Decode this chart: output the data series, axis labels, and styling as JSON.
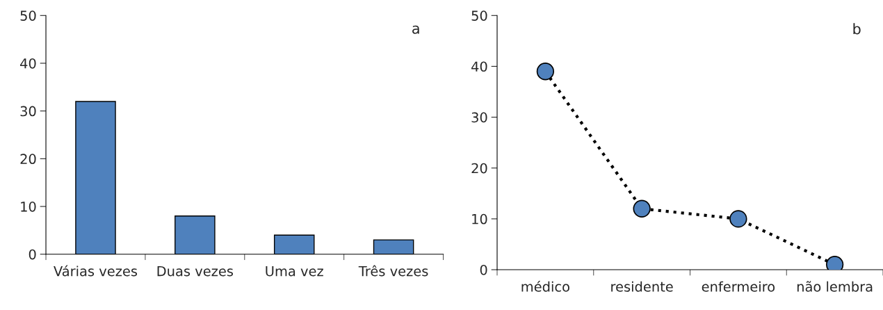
{
  "chart_data": [
    {
      "type": "bar",
      "categories": [
        "Várias vezes",
        "Duas vezes",
        "Uma vez",
        "Três vezes"
      ],
      "values": [
        32,
        8,
        4,
        3
      ],
      "color": "#4f81bd",
      "ylim": [
        0,
        50
      ],
      "yticks": [
        0,
        10,
        20,
        30,
        40,
        50
      ],
      "annotations": [
        "a"
      ]
    },
    {
      "type": "line",
      "categories": [
        "médico",
        "residente",
        "enfermeiro",
        "não lembra"
      ],
      "values": [
        39,
        12,
        10,
        1
      ],
      "color": "#4f81bd",
      "marker": "circle",
      "line_style": "dotted",
      "ylim": [
        0,
        50
      ],
      "yticks": [
        0,
        10,
        20,
        30,
        40,
        50
      ],
      "annotations": [
        "b"
      ]
    }
  ]
}
